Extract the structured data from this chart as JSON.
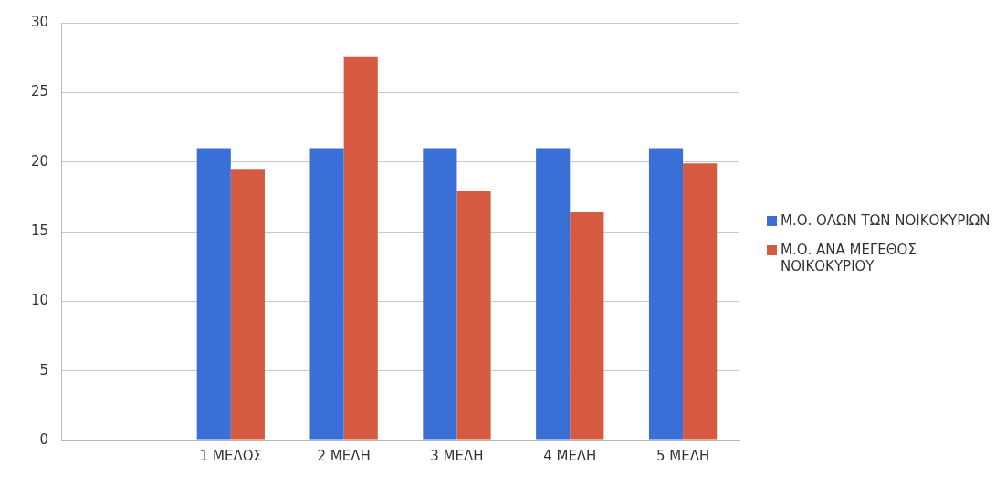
{
  "chart_data": {
    "type": "bar",
    "categories": [
      null,
      "1 ΜΕΛΟΣ",
      "2 ΜΕΛΗ",
      "3 ΜΕΛΗ",
      "4 ΜΕΛΗ",
      "5 ΜΕΛΗ"
    ],
    "series": [
      {
        "name": "Μ.Ο. ΟΛΩΝ ΤΩΝ ΝΟΙΚΟΚΥΡΙΩΝ",
        "color": "#3a6fd8",
        "values": [
          null,
          21,
          21,
          21,
          21,
          21
        ]
      },
      {
        "name": "Μ.Ο. ΑΝΑ ΜΕΓΕΘΟΣ ΝΟΙΚΟΚΥΡΙΟΥ",
        "color": "#d65a40",
        "values": [
          null,
          19.5,
          27.6,
          17.9,
          16.4,
          19.9
        ]
      }
    ],
    "ylim": [
      0,
      30
    ],
    "yticks": [
      0,
      5,
      10,
      15,
      20,
      25,
      30
    ],
    "grid": "y",
    "legend": "right"
  }
}
